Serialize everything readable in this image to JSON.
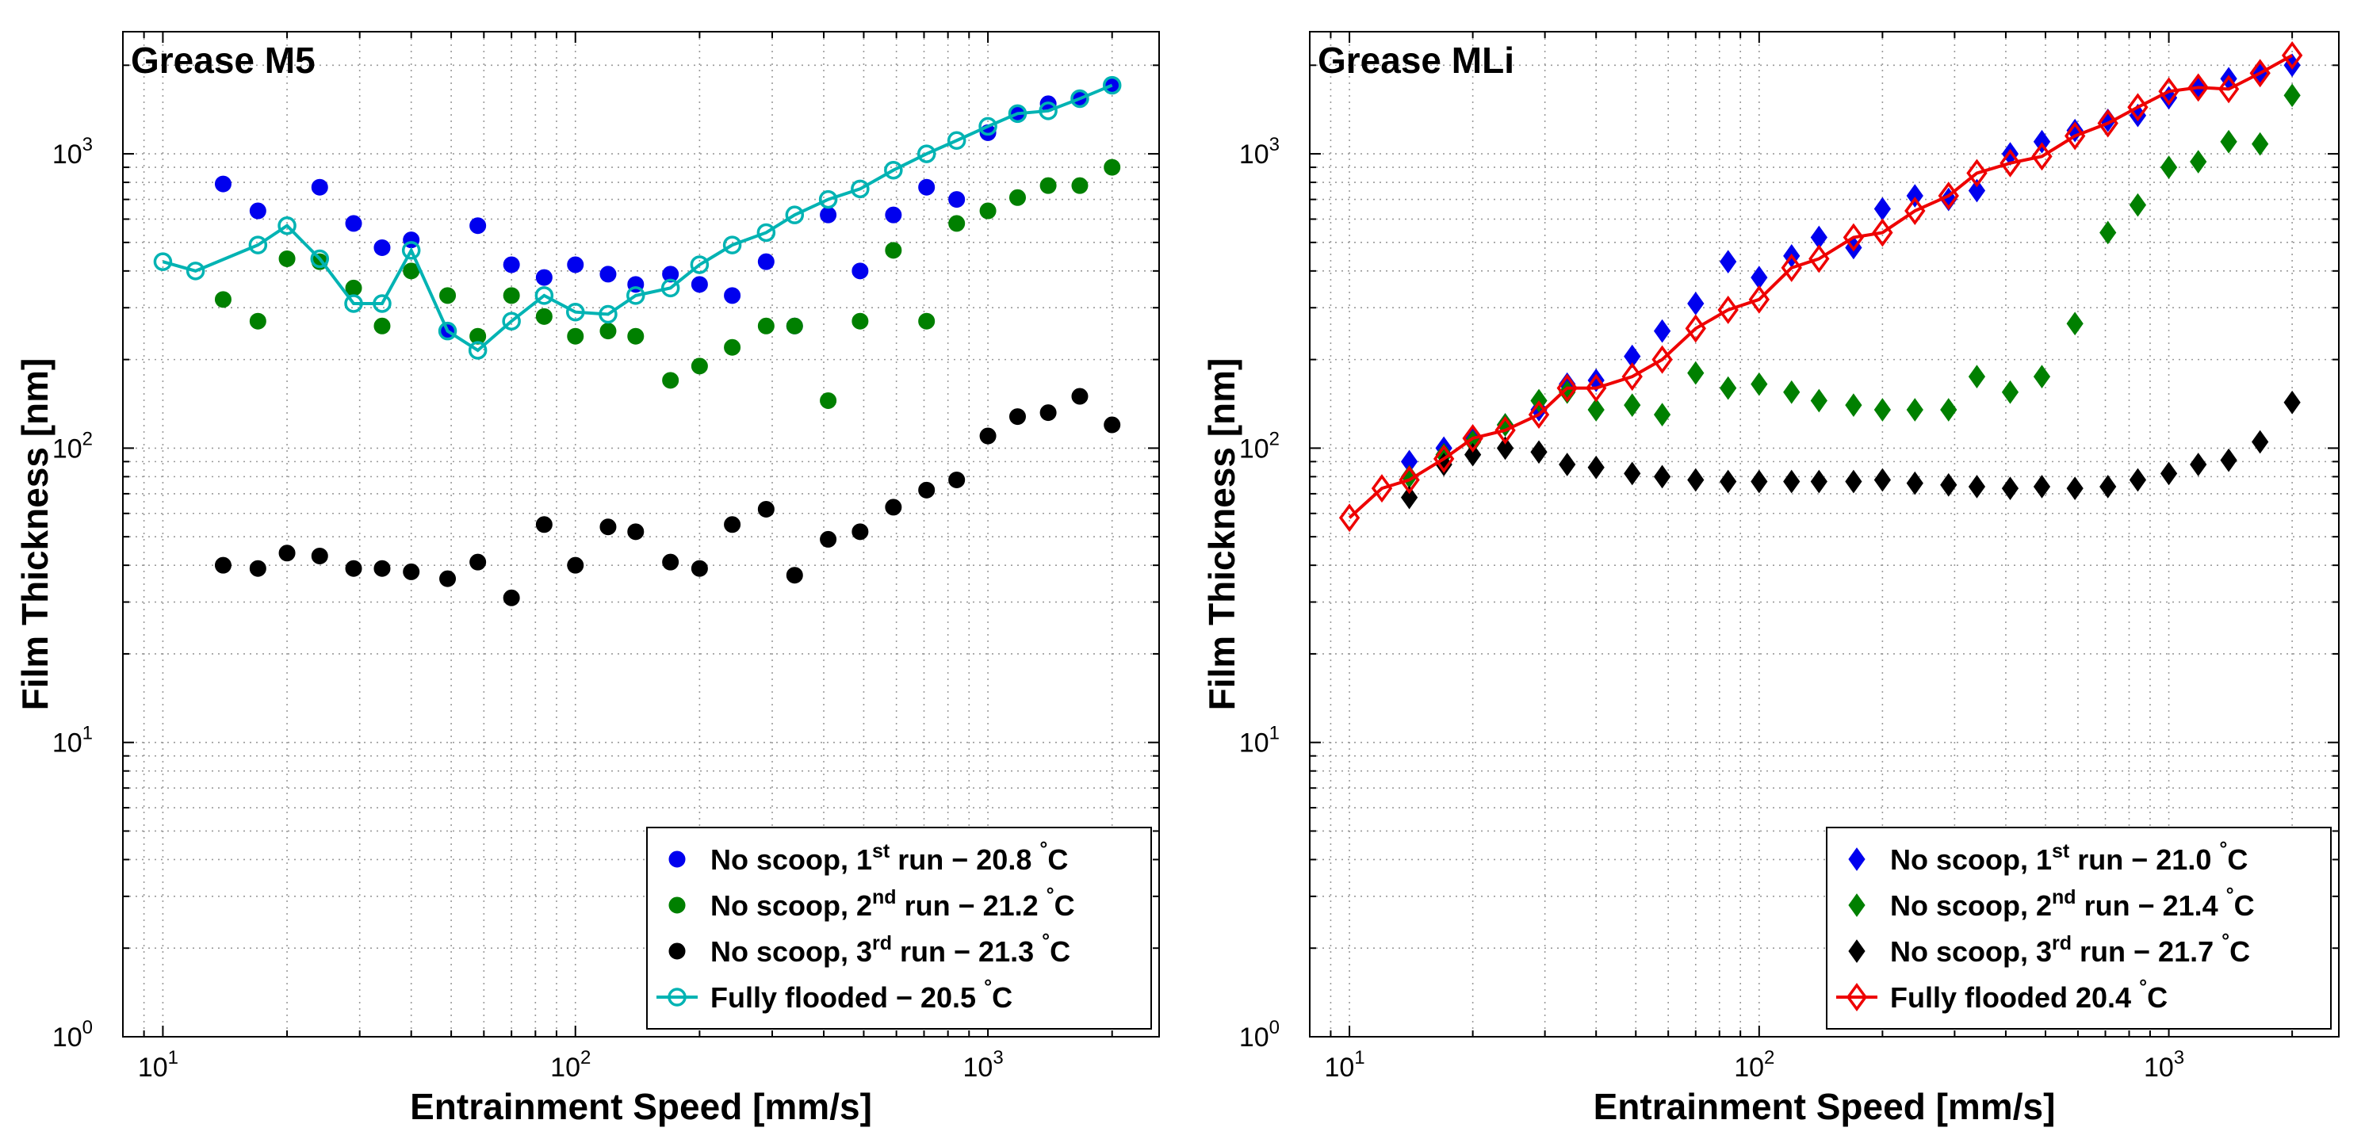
{
  "chart_data": [
    {
      "type": "scatter",
      "title": "Grease M5",
      "xlabel": "Entrainment Speed [mm/s]",
      "ylabel": "Film Thickness [nm]",
      "xscale": "log",
      "yscale": "log",
      "xlim": [
        8,
        2600
      ],
      "ylim": [
        1,
        2600
      ],
      "grid": true,
      "x_ticks": [
        {
          "base": "10",
          "exp": "1"
        },
        {
          "base": "10",
          "exp": "2"
        },
        {
          "base": "10",
          "exp": "3"
        }
      ],
      "y_ticks": [
        {
          "base": "10",
          "exp": "0"
        },
        {
          "base": "10",
          "exp": "1"
        },
        {
          "base": "10",
          "exp": "2"
        },
        {
          "base": "10",
          "exp": "3"
        }
      ],
      "legend_position": "bottom-right",
      "series": [
        {
          "name": "No scoop, 1st run − 20.8 °C",
          "label": {
            "pre": "No scoop, 1",
            "sup": "st",
            "mid": " run − 20.8 ",
            "deg": "°",
            "post": "C"
          },
          "marker": "circle",
          "color": "#0000ee",
          "line": false,
          "x": [
            14,
            17,
            24,
            29,
            34,
            40,
            49,
            58,
            70,
            84,
            100,
            120,
            140,
            170,
            200,
            240,
            290,
            340,
            410,
            490,
            590,
            710,
            840,
            1000,
            1180,
            1400,
            1670,
            2000
          ],
          "y": [
            790,
            640,
            770,
            580,
            480,
            510,
            250,
            570,
            420,
            380,
            420,
            390,
            360,
            390,
            360,
            330,
            430,
            260,
            620,
            400,
            620,
            770,
            700,
            1180,
            1360,
            1480,
            1530,
            1700
          ]
        },
        {
          "name": "No scoop, 2nd run − 21.2 °C",
          "label": {
            "pre": "No scoop, 2",
            "sup": "nd",
            "mid": " run − 21.2 ",
            "deg": "°",
            "post": "C"
          },
          "marker": "circle",
          "color": "#008000",
          "line": false,
          "x": [
            14,
            17,
            20,
            24,
            29,
            34,
            40,
            49,
            58,
            70,
            84,
            100,
            120,
            140,
            170,
            200,
            240,
            290,
            340,
            410,
            490,
            590,
            710,
            840,
            1000,
            1180,
            1400,
            1670,
            2000
          ],
          "y": [
            320,
            270,
            440,
            430,
            350,
            260,
            400,
            330,
            240,
            330,
            280,
            240,
            250,
            240,
            170,
            190,
            220,
            260,
            260,
            145,
            270,
            470,
            270,
            580,
            640,
            710,
            780,
            780,
            900
          ]
        },
        {
          "name": "No scoop, 3rd run − 21.3 °C",
          "label": {
            "pre": "No scoop, 3",
            "sup": "rd",
            "mid": " run − 21.3 ",
            "deg": "°",
            "post": "C"
          },
          "marker": "circle",
          "color": "#000000",
          "line": false,
          "x": [
            14,
            17,
            20,
            24,
            29,
            34,
            40,
            49,
            58,
            70,
            84,
            100,
            120,
            140,
            170,
            200,
            240,
            290,
            340,
            410,
            490,
            590,
            710,
            840,
            1000,
            1180,
            1400,
            1670,
            2000
          ],
          "y": [
            40,
            39,
            44,
            43,
            39,
            39,
            38,
            36,
            41,
            31,
            55,
            40,
            54,
            52,
            41,
            39,
            55,
            62,
            37,
            49,
            52,
            63,
            72,
            78,
            110,
            128,
            132,
            150,
            120
          ]
        },
        {
          "name": "Fully flooded − 20.5 °C",
          "label": {
            "pre": "Fully flooded − 20.5 ",
            "sup": "",
            "mid": "",
            "deg": "°",
            "post": "C"
          },
          "marker": "open-circle",
          "color": "#00b3b3",
          "line": true,
          "x": [
            10,
            12,
            17,
            20,
            24,
            29,
            34,
            40,
            49,
            58,
            70,
            84,
            100,
            120,
            140,
            170,
            200,
            240,
            290,
            340,
            410,
            490,
            590,
            710,
            840,
            1000,
            1180,
            1400,
            1670,
            2000
          ],
          "y": [
            430,
            400,
            490,
            570,
            440,
            310,
            310,
            470,
            250,
            215,
            270,
            330,
            290,
            285,
            330,
            350,
            420,
            490,
            540,
            620,
            700,
            760,
            880,
            1000,
            1110,
            1240,
            1370,
            1400,
            1540,
            1710
          ]
        }
      ]
    },
    {
      "type": "scatter",
      "title": "Grease MLi",
      "xlabel": "Entrainment Speed [mm/s]",
      "ylabel": "Film Thickness [nm]",
      "xscale": "log",
      "yscale": "log",
      "xlim": [
        8,
        2600
      ],
      "ylim": [
        1,
        2600
      ],
      "grid": true,
      "x_ticks": [
        {
          "base": "10",
          "exp": "1"
        },
        {
          "base": "10",
          "exp": "2"
        },
        {
          "base": "10",
          "exp": "3"
        }
      ],
      "y_ticks": [
        {
          "base": "10",
          "exp": "0"
        },
        {
          "base": "10",
          "exp": "1"
        },
        {
          "base": "10",
          "exp": "2"
        },
        {
          "base": "10",
          "exp": "3"
        }
      ],
      "legend_position": "bottom-right",
      "series": [
        {
          "name": "No scoop, 1st run − 21.0 °C",
          "label": {
            "pre": "No scoop, 1",
            "sup": "st",
            "mid": " run − 21.0 ",
            "deg": "°",
            "post": "C"
          },
          "marker": "diamond",
          "color": "#0000ee",
          "line": false,
          "x": [
            14,
            17,
            20,
            24,
            29,
            34,
            40,
            49,
            58,
            70,
            84,
            100,
            120,
            140,
            170,
            200,
            240,
            290,
            340,
            410,
            490,
            590,
            710,
            840,
            1000,
            1180,
            1400,
            1670,
            2000
          ],
          "y": [
            90,
            100,
            108,
            120,
            135,
            165,
            170,
            205,
            250,
            310,
            430,
            380,
            450,
            520,
            480,
            650,
            720,
            700,
            750,
            1000,
            1100,
            1200,
            1300,
            1350,
            1550,
            1700,
            1800,
            1850,
            2000
          ]
        },
        {
          "name": "No scoop, 2nd run − 21.4 °C",
          "label": {
            "pre": "No scoop, 2",
            "sup": "nd",
            "mid": " run − 21.4 ",
            "deg": "°",
            "post": "C"
          },
          "marker": "diamond",
          "color": "#008000",
          "line": false,
          "x": [
            14,
            17,
            20,
            24,
            29,
            34,
            40,
            49,
            58,
            70,
            84,
            100,
            120,
            140,
            170,
            200,
            240,
            290,
            340,
            410,
            490,
            590,
            710,
            840,
            1000,
            1180,
            1400,
            1670,
            2000
          ],
          "y": [
            80,
            95,
            105,
            120,
            145,
            155,
            135,
            140,
            130,
            180,
            160,
            165,
            155,
            145,
            140,
            135,
            135,
            135,
            175,
            155,
            175,
            265,
            540,
            670,
            900,
            940,
            1100,
            1080,
            1580
          ]
        },
        {
          "name": "No scoop, 3rd run − 21.7 °C",
          "label": {
            "pre": "No scoop, 3",
            "sup": "rd",
            "mid": " run − 21.7 ",
            "deg": "°",
            "post": "C"
          },
          "marker": "diamond",
          "color": "#000000",
          "line": false,
          "x": [
            14,
            17,
            20,
            24,
            29,
            34,
            40,
            49,
            58,
            70,
            84,
            100,
            120,
            140,
            170,
            200,
            240,
            290,
            340,
            410,
            490,
            590,
            710,
            840,
            1000,
            1180,
            1400,
            1670,
            2000
          ],
          "y": [
            68,
            88,
            95,
            100,
            97,
            88,
            86,
            82,
            80,
            78,
            77,
            77,
            77,
            77,
            77,
            78,
            76,
            75,
            74,
            73,
            74,
            73,
            74,
            78,
            82,
            88,
            91,
            105,
            143
          ]
        },
        {
          "name": "Fully flooded 20.4 °C",
          "label": {
            "pre": "Fully flooded 20.4 ",
            "sup": "",
            "mid": "",
            "deg": "°",
            "post": "C"
          },
          "marker": "open-diamond",
          "color": "#ee0000",
          "line": true,
          "x": [
            10,
            12,
            14,
            17,
            20,
            24,
            29,
            34,
            40,
            49,
            58,
            70,
            84,
            100,
            120,
            140,
            170,
            200,
            240,
            290,
            340,
            410,
            490,
            590,
            710,
            840,
            1000,
            1180,
            1400,
            1670,
            2000
          ],
          "y": [
            58,
            73,
            78,
            92,
            108,
            115,
            130,
            160,
            160,
            175,
            200,
            255,
            295,
            320,
            410,
            440,
            520,
            540,
            640,
            720,
            860,
            930,
            980,
            1150,
            1270,
            1440,
            1630,
            1680,
            1660,
            1880,
            2160
          ]
        }
      ]
    }
  ]
}
